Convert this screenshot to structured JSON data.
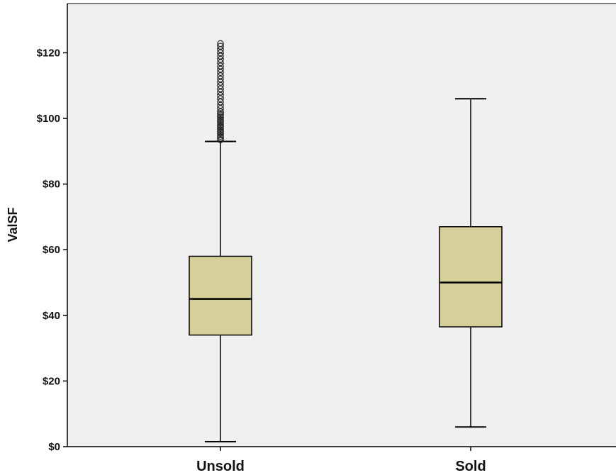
{
  "chart_data": {
    "type": "boxplot",
    "title": "",
    "xlabel": "",
    "ylabel": "ValSF",
    "ylim": [
      0,
      135
    ],
    "y_ticks": [
      0,
      20,
      40,
      60,
      80,
      100,
      120
    ],
    "y_tick_labels": [
      "$0",
      "$20",
      "$40",
      "$60",
      "$80",
      "$100",
      "$120"
    ],
    "categories": [
      "Unsold",
      "Sold"
    ],
    "grid": false,
    "colors": {
      "box_fill": "#d6cf9a",
      "plot_background": "#f0f0f0",
      "line": "#000000"
    },
    "boxes": [
      {
        "category": "Unsold",
        "whisker_low": 1.5,
        "q1": 34,
        "median": 45,
        "q3": 58,
        "whisker_high": 93,
        "outliers": [
          93.5,
          94,
          94.5,
          95,
          95.5,
          96,
          96.5,
          97,
          97.5,
          98,
          98.5,
          99,
          99.5,
          100,
          100.5,
          101,
          101.5,
          102,
          103,
          104,
          105,
          106,
          107,
          108,
          109,
          110,
          111,
          112,
          113,
          114,
          115,
          116,
          117,
          118,
          119,
          120,
          121,
          122,
          122.8
        ]
      },
      {
        "category": "Sold",
        "whisker_low": 6,
        "q1": 36.5,
        "median": 50,
        "q3": 67,
        "whisker_high": 106,
        "outliers": []
      }
    ]
  }
}
